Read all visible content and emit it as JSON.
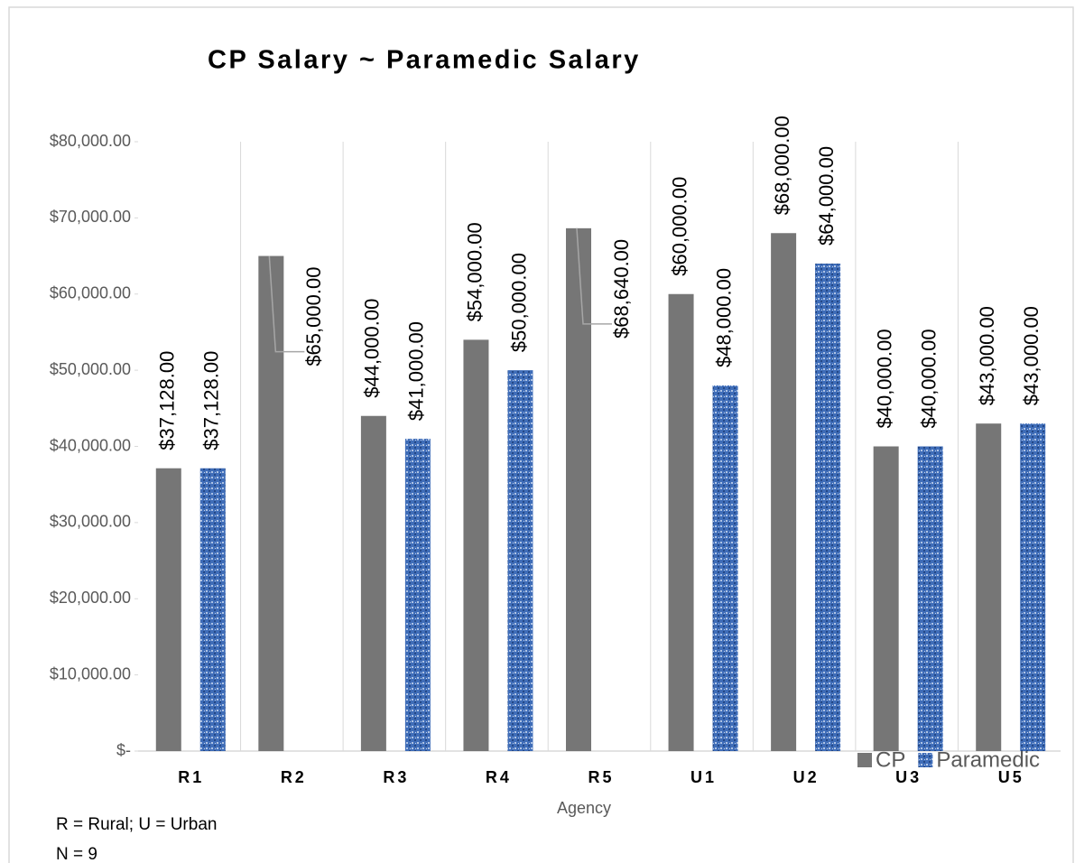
{
  "chart_data": {
    "type": "bar",
    "title": "CP Salary ~ Paramedic Salary",
    "x_label": "Agency",
    "annotations": [
      "R = Rural; U = Urban",
      "N = 9"
    ],
    "categories": [
      "R1",
      "R2",
      "R3",
      "R4",
      "R5",
      "U1",
      "U2",
      "U3",
      "U5"
    ],
    "series": [
      {
        "name": "CP",
        "color": "#767676",
        "values": [
          37128,
          65000,
          44000,
          54000,
          68640,
          60000,
          68000,
          40000,
          43000
        ],
        "value_labels": [
          "$37,128.00",
          "$65,000.00",
          "$44,000.00",
          "$54,000.00",
          "$68,640.00",
          "$60,000.00",
          "$68,000.00",
          "$40,000.00",
          "$43,000.00"
        ]
      },
      {
        "name": "Paramedic",
        "color": "#3f6db8",
        "values": [
          37128,
          null,
          41000,
          50000,
          null,
          48000,
          64000,
          40000,
          43000
        ],
        "value_labels": [
          "$37,128.00",
          null,
          "$41,000.00",
          "$50,000.00",
          null,
          "$48,000.00",
          "$64,000.00",
          "$40,000.00",
          "$43,000.00"
        ]
      }
    ],
    "ylim": [
      0,
      80000
    ],
    "yticks": [
      {
        "value": 0,
        "label": "$-"
      },
      {
        "value": 10000,
        "label": "$10,000.00"
      },
      {
        "value": 20000,
        "label": "$20,000.00"
      },
      {
        "value": 30000,
        "label": "$30,000.00"
      },
      {
        "value": 40000,
        "label": "$40,000.00"
      },
      {
        "value": 50000,
        "label": "$50,000.00"
      },
      {
        "value": 60000,
        "label": "$60,000.00"
      },
      {
        "value": 70000,
        "label": "$70,000.00"
      },
      {
        "value": 80000,
        "label": "$80,000.00"
      }
    ],
    "legend": "bottom-right"
  }
}
